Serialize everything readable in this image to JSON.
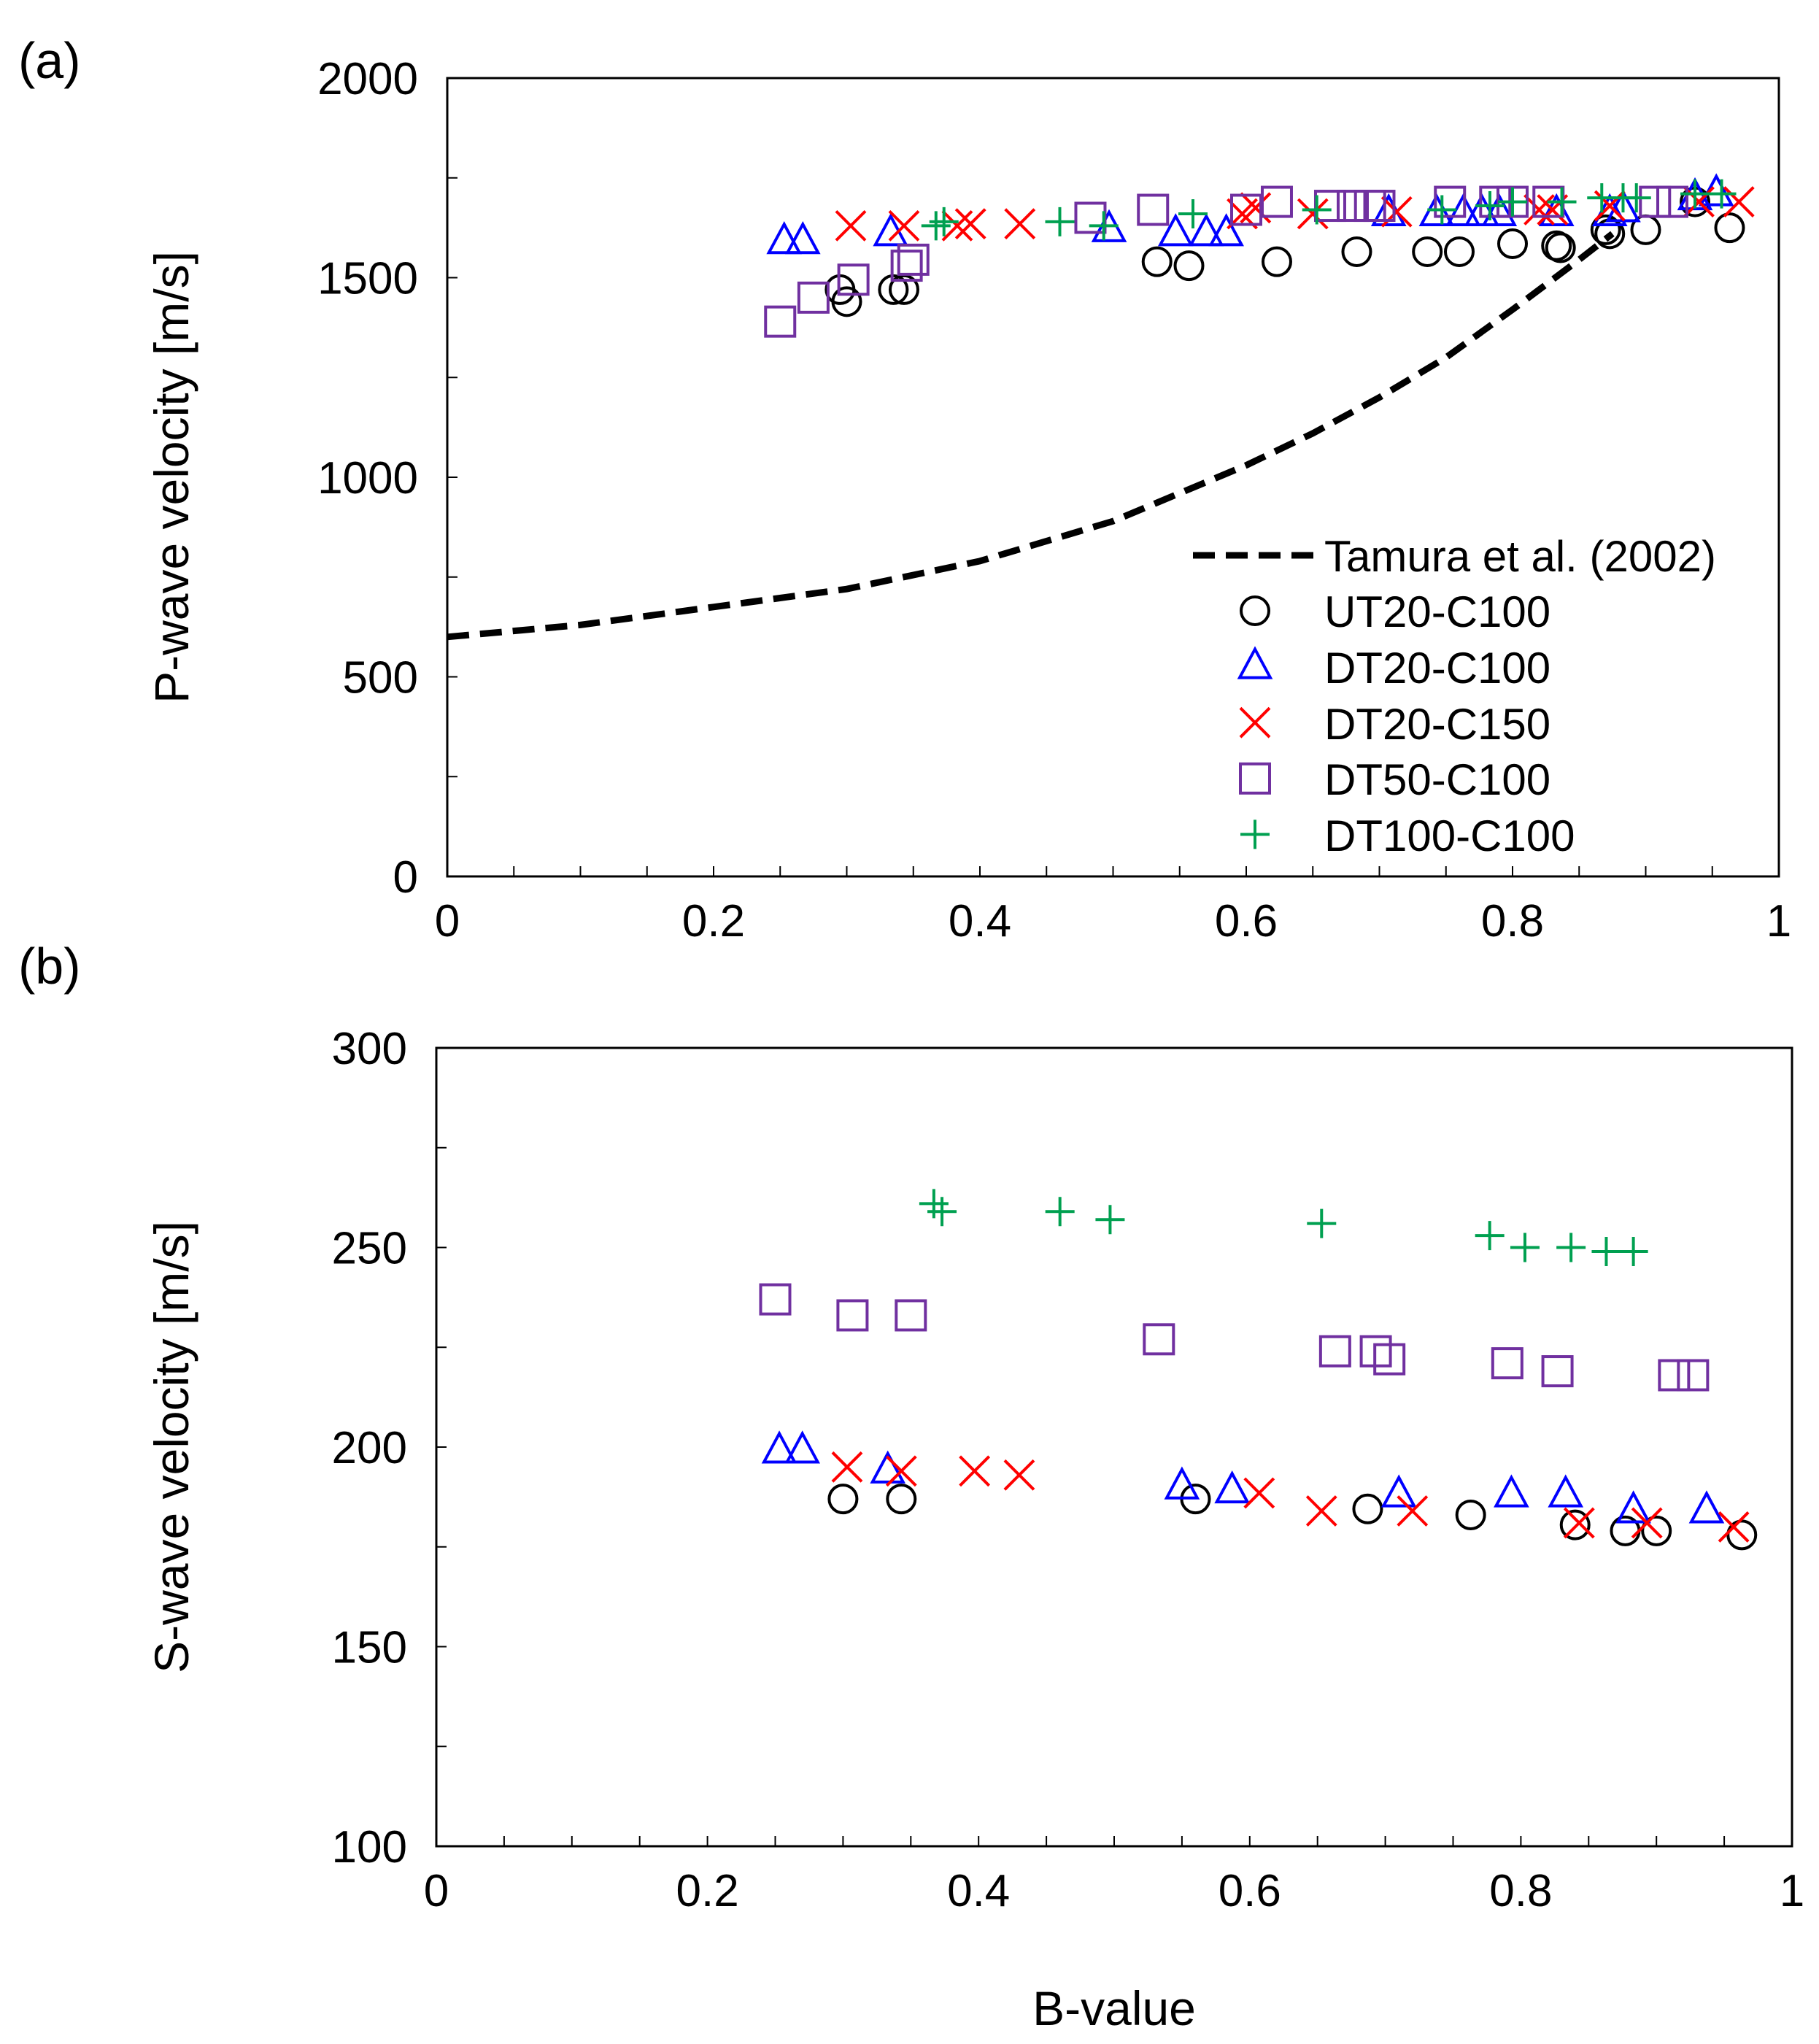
{
  "figure": {
    "colors": {
      "tamura": "#000000",
      "UT20-C100": "#000000",
      "DT20-C100": "#0000ff",
      "DT20-C150": "#ff0000",
      "DT50-C100": "#7030a0",
      "DT100-C100": "#00a050"
    }
  },
  "chart_data": [
    {
      "type": "scatter",
      "panel_label": "(a)",
      "title": "",
      "xlabel": "",
      "ylabel": "P-wave velocity [m/s]",
      "xlim": [
        0,
        1
      ],
      "ylim": [
        0,
        2000
      ],
      "x_ticks": [
        0,
        0.2,
        0.4,
        0.6,
        0.8,
        1
      ],
      "x_tick_labels": [
        "0",
        "0.2",
        "0.4",
        "0.6",
        "0.8",
        "1"
      ],
      "y_ticks": [
        0,
        500,
        1000,
        1500,
        2000
      ],
      "y_tick_labels": [
        "0",
        "500",
        "1000",
        "1500",
        "2000"
      ],
      "grid": false,
      "legend_position": "bottom-right",
      "legend": [
        "Tamura et al. (2002)",
        "UT20-C100",
        "DT20-C100",
        "DT20-C150",
        "DT50-C100",
        "DT100-C100"
      ],
      "line": {
        "name": "Tamura et al. (2002)",
        "style": "dashed",
        "x": [
          0,
          0.1,
          0.2,
          0.3,
          0.4,
          0.5,
          0.6,
          0.65,
          0.7,
          0.75,
          0.8,
          0.85,
          0.875
        ],
        "y": [
          600,
          630,
          675,
          720,
          790,
          890,
          1030,
          1110,
          1200,
          1300,
          1420,
          1545,
          1610
        ]
      },
      "series": [
        {
          "name": "UT20-C100",
          "marker": "circle",
          "x": [
            0.295,
            0.3,
            0.335,
            0.343,
            0.533,
            0.557,
            0.623,
            0.683,
            0.736,
            0.76,
            0.8,
            0.833,
            0.836,
            0.87,
            0.873,
            0.9,
            0.937,
            0.963
          ],
          "y": [
            1470,
            1440,
            1470,
            1470,
            1540,
            1530,
            1540,
            1565,
            1565,
            1565,
            1585,
            1580,
            1575,
            1620,
            1610,
            1620,
            1690,
            1625
          ]
        },
        {
          "name": "DT20-C100",
          "marker": "triangle",
          "x": [
            0.253,
            0.267,
            0.333,
            0.497,
            0.547,
            0.57,
            0.585,
            0.707,
            0.743,
            0.763,
            0.777,
            0.79,
            0.833,
            0.873,
            0.883,
            0.937,
            0.953
          ],
          "y": [
            1590,
            1590,
            1610,
            1620,
            1610,
            1610,
            1610,
            1660,
            1660,
            1660,
            1660,
            1660,
            1660,
            1660,
            1670,
            1700,
            1710
          ]
        },
        {
          "name": "DT20-C150",
          "marker": "x",
          "x": [
            0.303,
            0.343,
            0.383,
            0.393,
            0.43,
            0.597,
            0.607,
            0.65,
            0.713,
            0.82,
            0.83,
            0.873,
            0.94,
            0.97
          ],
          "y": [
            1630,
            1630,
            1630,
            1635,
            1635,
            1660,
            1675,
            1660,
            1665,
            1670,
            1670,
            1680,
            1690,
            1690
          ]
        },
        {
          "name": "DT50-C100",
          "marker": "square",
          "x": [
            0.25,
            0.275,
            0.305,
            0.345,
            0.35,
            0.483,
            0.53,
            0.6,
            0.623,
            0.663,
            0.68,
            0.693,
            0.7,
            0.753,
            0.787,
            0.8,
            0.827,
            0.907,
            0.92
          ],
          "y": [
            1390,
            1450,
            1495,
            1530,
            1545,
            1650,
            1670,
            1670,
            1690,
            1680,
            1680,
            1680,
            1680,
            1690,
            1690,
            1690,
            1690,
            1690,
            1690
          ]
        },
        {
          "name": "DT100-C100",
          "marker": "plus",
          "x": [
            0.367,
            0.373,
            0.46,
            0.493,
            0.56,
            0.653,
            0.747,
            0.783,
            0.8,
            0.837,
            0.867,
            0.883,
            0.893,
            0.937,
            0.957
          ],
          "y": [
            1630,
            1640,
            1640,
            1630,
            1660,
            1670,
            1670,
            1680,
            1690,
            1690,
            1700,
            1700,
            1700,
            1710,
            1710
          ]
        }
      ]
    },
    {
      "type": "scatter",
      "panel_label": "(b)",
      "title": "",
      "xlabel": "B-value",
      "ylabel": "S-wave velocity [m/s]",
      "xlim": [
        0,
        1
      ],
      "ylim": [
        100,
        300
      ],
      "x_ticks": [
        0,
        0.2,
        0.4,
        0.6,
        0.8,
        1
      ],
      "x_tick_labels": [
        "0",
        "0.2",
        "0.4",
        "0.6",
        "0.8",
        "1"
      ],
      "y_ticks": [
        100,
        150,
        200,
        250,
        300
      ],
      "y_tick_labels": [
        "100",
        "150",
        "200",
        "250",
        "300"
      ],
      "grid": false,
      "series": [
        {
          "name": "UT20-C100",
          "marker": "circle",
          "x": [
            0.3,
            0.343,
            0.56,
            0.687,
            0.763,
            0.84,
            0.877,
            0.9,
            0.963
          ],
          "y": [
            187,
            187,
            187,
            184.5,
            183,
            180.5,
            179,
            179,
            178
          ]
        },
        {
          "name": "DT20-C100",
          "marker": "triangle",
          "x": [
            0.253,
            0.27,
            0.333,
            0.55,
            0.587,
            0.71,
            0.793,
            0.833,
            0.883,
            0.937
          ],
          "y": [
            199,
            199,
            194,
            190,
            189,
            188,
            188,
            188,
            184,
            184
          ]
        },
        {
          "name": "DT20-C150",
          "marker": "x",
          "x": [
            0.303,
            0.343,
            0.397,
            0.43,
            0.607,
            0.653,
            0.72,
            0.843,
            0.893,
            0.957
          ],
          "y": [
            195,
            194,
            194,
            193,
            188.5,
            184,
            184,
            181,
            181,
            180
          ]
        },
        {
          "name": "DT50-C100",
          "marker": "square",
          "x": [
            0.25,
            0.307,
            0.35,
            0.533,
            0.663,
            0.693,
            0.703,
            0.79,
            0.827,
            0.913,
            0.927
          ],
          "y": [
            237,
            233,
            233,
            227,
            224,
            224,
            222,
            221,
            219,
            218,
            218
          ]
        },
        {
          "name": "DT100-C100",
          "marker": "plus",
          "x": [
            0.367,
            0.373,
            0.46,
            0.497,
            0.653,
            0.777,
            0.803,
            0.837,
            0.863,
            0.883
          ],
          "y": [
            261,
            259,
            259,
            257,
            256,
            253,
            250,
            250,
            249,
            249
          ]
        }
      ]
    }
  ]
}
